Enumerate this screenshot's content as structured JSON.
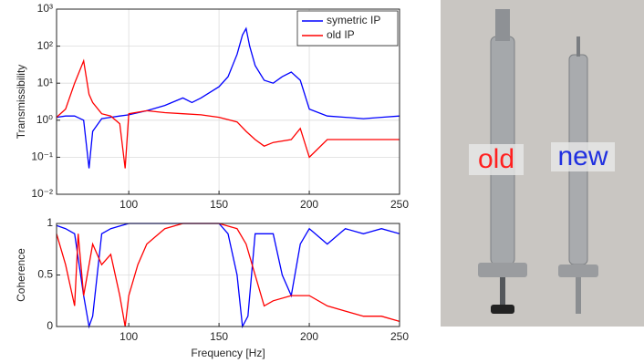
{
  "chart_data": [
    {
      "type": "line",
      "ylabel": "Transmissibility",
      "log_y": true,
      "grid": true,
      "legend": "upper right",
      "xlim": [
        60,
        250
      ],
      "xticks": [
        100,
        150,
        200,
        250
      ],
      "ylim": [
        0.01,
        1000
      ],
      "yticks": [
        {
          "value": 0.01,
          "label": "10⁻²"
        },
        {
          "value": 0.1,
          "label": "10⁻¹"
        },
        {
          "value": 1,
          "label": "10⁰"
        },
        {
          "value": 10,
          "label": "10¹"
        },
        {
          "value": 100,
          "label": "10²"
        },
        {
          "value": 1000,
          "label": "10³"
        }
      ],
      "series": [
        {
          "name": "symetric IP",
          "color": "#0000ff",
          "x": [
            60,
            65,
            70,
            75,
            78,
            80,
            85,
            90,
            95,
            100,
            110,
            120,
            130,
            135,
            140,
            150,
            155,
            160,
            163,
            165,
            167,
            170,
            175,
            180,
            185,
            190,
            195,
            200,
            210,
            220,
            230,
            240,
            250
          ],
          "values": [
            1.2,
            1.3,
            1.3,
            1,
            0.05,
            0.5,
            1.1,
            1.2,
            1.3,
            1.4,
            1.8,
            2.5,
            4,
            3,
            4,
            8,
            15,
            60,
            200,
            300,
            100,
            30,
            12,
            10,
            15,
            20,
            12,
            2,
            1.3,
            1.2,
            1.1,
            1.2,
            1.3
          ]
        },
        {
          "name": "old IP",
          "color": "#ff0000",
          "x": [
            60,
            65,
            70,
            75,
            78,
            80,
            85,
            90,
            95,
            98,
            100,
            110,
            120,
            130,
            140,
            150,
            160,
            165,
            170,
            175,
            180,
            190,
            195,
            200,
            210,
            220,
            230,
            240,
            250
          ],
          "values": [
            1.2,
            2,
            10,
            40,
            5,
            3,
            1.5,
            1.3,
            0.8,
            0.05,
            1.5,
            1.8,
            1.6,
            1.5,
            1.4,
            1.2,
            0.9,
            0.5,
            0.3,
            0.2,
            0.25,
            0.3,
            0.6,
            0.1,
            0.3,
            0.3,
            0.3,
            0.3,
            0.3
          ]
        }
      ]
    },
    {
      "type": "line",
      "ylabel": "Coherence",
      "xlabel": "Frequency [Hz]",
      "log_y": false,
      "grid": true,
      "xlim": [
        60,
        250
      ],
      "xticks": [
        100,
        150,
        200,
        250
      ],
      "ylim": [
        0,
        1
      ],
      "yticks": [
        0,
        0.5,
        1
      ],
      "series": [
        {
          "color": "#0000ff",
          "x": [
            60,
            65,
            70,
            75,
            78,
            80,
            85,
            90,
            100,
            120,
            140,
            150,
            155,
            160,
            163,
            166,
            170,
            180,
            185,
            190,
            195,
            200,
            210,
            220,
            230,
            240,
            250
          ],
          "values": [
            0.98,
            0.95,
            0.9,
            0.3,
            0,
            0.1,
            0.9,
            0.95,
            1,
            1,
            1,
            1,
            0.9,
            0.5,
            0,
            0.1,
            0.9,
            0.9,
            0.5,
            0.3,
            0.8,
            0.95,
            0.8,
            0.95,
            0.9,
            0.95,
            0.9
          ]
        },
        {
          "color": "#ff0000",
          "x": [
            60,
            65,
            70,
            72,
            75,
            80,
            85,
            90,
            95,
            98,
            100,
            105,
            110,
            120,
            130,
            150,
            160,
            165,
            170,
            175,
            180,
            190,
            200,
            210,
            220,
            230,
            240,
            250
          ],
          "values": [
            0.9,
            0.6,
            0.2,
            0.9,
            0.3,
            0.8,
            0.6,
            0.7,
            0.3,
            0,
            0.3,
            0.6,
            0.8,
            0.95,
            1,
            1,
            0.95,
            0.8,
            0.5,
            0.2,
            0.25,
            0.3,
            0.3,
            0.2,
            0.15,
            0.1,
            0.1,
            0.05
          ]
        }
      ]
    }
  ],
  "photo": {
    "labels": [
      "old",
      "new"
    ]
  }
}
